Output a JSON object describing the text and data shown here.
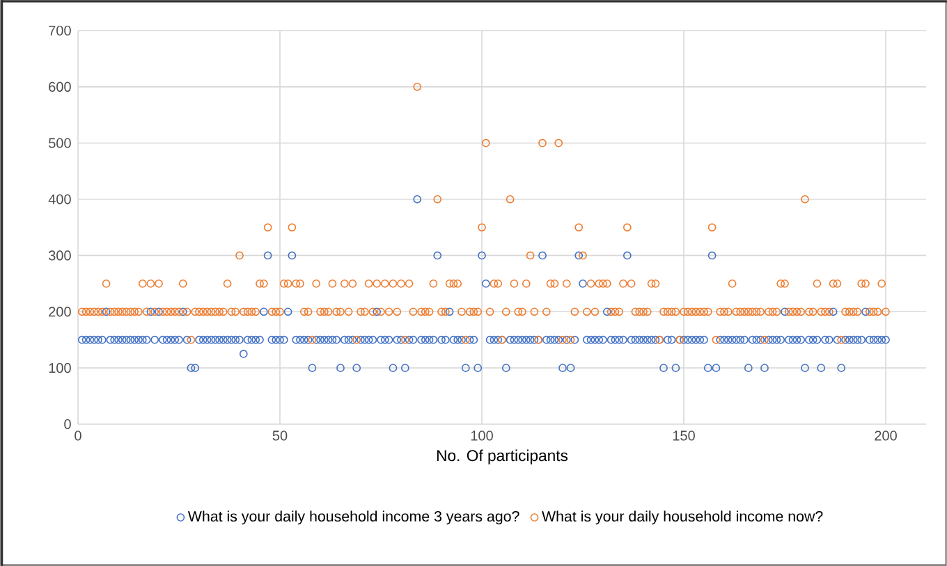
{
  "chart_data": {
    "type": "scatter",
    "xlabel": "No. Of participants",
    "x": [
      1,
      2,
      3,
      4,
      5,
      6,
      7,
      8,
      9,
      10,
      11,
      12,
      13,
      14,
      15,
      16,
      17,
      18,
      19,
      20,
      21,
      22,
      23,
      24,
      25,
      26,
      27,
      28,
      29,
      30,
      31,
      32,
      33,
      34,
      35,
      36,
      37,
      38,
      39,
      40,
      41,
      42,
      43,
      44,
      45,
      46,
      47,
      48,
      49,
      50,
      51,
      52,
      53,
      54,
      55,
      56,
      57,
      58,
      59,
      60,
      61,
      62,
      63,
      64,
      65,
      66,
      67,
      68,
      69,
      70,
      71,
      72,
      73,
      74,
      75,
      76,
      77,
      78,
      79,
      80,
      81,
      82,
      83,
      84,
      85,
      86,
      87,
      88,
      89,
      90,
      91,
      92,
      93,
      94,
      95,
      96,
      97,
      98,
      99,
      100,
      101,
      102,
      103,
      104,
      105,
      106,
      107,
      108,
      109,
      110,
      111,
      112,
      113,
      114,
      115,
      116,
      117,
      118,
      119,
      120,
      121,
      122,
      123,
      124,
      125,
      126,
      127,
      128,
      129,
      130,
      131,
      132,
      133,
      134,
      135,
      136,
      137,
      138,
      139,
      140,
      141,
      142,
      143,
      144,
      145,
      146,
      147,
      148,
      149,
      150,
      151,
      152,
      153,
      154,
      155,
      156,
      157,
      158,
      159,
      160,
      161,
      162,
      163,
      164,
      165,
      166,
      167,
      168,
      169,
      170,
      171,
      172,
      173,
      174,
      175,
      176,
      177,
      178,
      179,
      180,
      181,
      182,
      183,
      184,
      185,
      186,
      187,
      188,
      189,
      190,
      191,
      192,
      193,
      194,
      195,
      196,
      197,
      198,
      199,
      200
    ],
    "series": [
      {
        "name": "What is your daily household income 3 years ago?",
        "color": "#4472c4",
        "values": [
          150,
          150,
          150,
          150,
          150,
          150,
          200,
          150,
          150,
          150,
          150,
          150,
          150,
          150,
          150,
          150,
          150,
          200,
          150,
          200,
          150,
          150,
          150,
          150,
          150,
          200,
          150,
          100,
          100,
          150,
          150,
          150,
          150,
          150,
          150,
          150,
          150,
          150,
          150,
          150,
          125,
          150,
          150,
          150,
          150,
          200,
          300,
          150,
          150,
          150,
          150,
          200,
          300,
          150,
          150,
          150,
          150,
          100,
          150,
          150,
          150,
          150,
          150,
          150,
          100,
          150,
          150,
          150,
          100,
          150,
          150,
          150,
          150,
          200,
          150,
          150,
          150,
          100,
          150,
          150,
          100,
          150,
          150,
          400,
          150,
          150,
          150,
          150,
          300,
          150,
          150,
          200,
          150,
          150,
          150,
          100,
          150,
          150,
          100,
          300,
          250,
          150,
          150,
          150,
          150,
          100,
          150,
          150,
          150,
          150,
          150,
          150,
          150,
          150,
          300,
          150,
          150,
          150,
          150,
          100,
          150,
          100,
          150,
          300,
          250,
          150,
          150,
          150,
          150,
          150,
          200,
          150,
          150,
          150,
          150,
          300,
          150,
          150,
          150,
          150,
          150,
          150,
          150,
          150,
          100,
          150,
          150,
          100,
          150,
          150,
          150,
          150,
          150,
          150,
          150,
          100,
          300,
          100,
          150,
          150,
          150,
          150,
          150,
          150,
          150,
          100,
          150,
          150,
          150,
          100,
          150,
          150,
          150,
          150,
          200,
          150,
          150,
          150,
          150,
          100,
          150,
          150,
          150,
          100,
          150,
          150,
          200,
          150,
          100,
          150,
          150,
          150,
          150,
          150,
          200,
          150,
          150,
          150,
          150,
          150
        ]
      },
      {
        "name": "What is your daily household income now?",
        "color": "#ed7d31",
        "values": [
          200,
          200,
          200,
          200,
          200,
          200,
          250,
          200,
          200,
          200,
          200,
          200,
          200,
          200,
          200,
          250,
          200,
          250,
          200,
          250,
          200,
          200,
          200,
          200,
          200,
          250,
          200,
          150,
          200,
          200,
          200,
          200,
          200,
          200,
          200,
          200,
          250,
          200,
          200,
          300,
          200,
          200,
          200,
          200,
          250,
          250,
          350,
          200,
          200,
          200,
          250,
          250,
          350,
          250,
          250,
          200,
          200,
          150,
          250,
          200,
          200,
          200,
          250,
          200,
          200,
          250,
          200,
          250,
          150,
          200,
          200,
          250,
          200,
          250,
          200,
          250,
          200,
          250,
          200,
          250,
          150,
          250,
          200,
          600,
          200,
          200,
          200,
          250,
          400,
          200,
          200,
          250,
          250,
          250,
          200,
          150,
          200,
          200,
          200,
          350,
          500,
          200,
          250,
          250,
          150,
          200,
          400,
          250,
          200,
          200,
          250,
          300,
          200,
          150,
          500,
          200,
          250,
          250,
          500,
          150,
          250,
          150,
          200,
          350,
          300,
          200,
          250,
          200,
          250,
          250,
          250,
          200,
          200,
          200,
          250,
          350,
          250,
          200,
          200,
          200,
          200,
          250,
          250,
          150,
          200,
          200,
          200,
          200,
          150,
          200,
          200,
          200,
          200,
          200,
          200,
          200,
          350,
          150,
          200,
          200,
          200,
          250,
          200,
          200,
          200,
          200,
          200,
          200,
          200,
          150,
          200,
          200,
          200,
          250,
          250,
          200,
          200,
          200,
          200,
          400,
          200,
          200,
          250,
          200,
          200,
          200,
          250,
          250,
          150,
          200,
          200,
          200,
          200,
          250,
          250,
          200,
          200,
          200,
          250,
          200
        ]
      }
    ],
    "xlim": [
      0,
      210
    ],
    "ylim": [
      0,
      700
    ],
    "xticks": [
      0,
      50,
      100,
      150,
      200
    ],
    "yticks": [
      0,
      100,
      200,
      300,
      400,
      500,
      600,
      700
    ],
    "grid": true,
    "legend": "bottom",
    "marker": "circle"
  }
}
